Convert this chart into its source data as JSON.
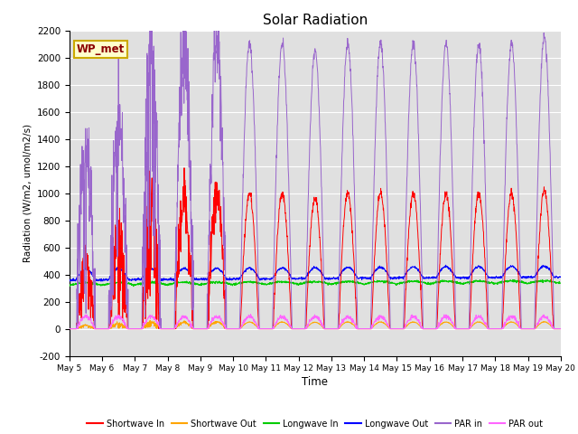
{
  "title": "Solar Radiation",
  "xlabel": "Time",
  "ylabel": "Radiation (W/m2, umol/m2/s)",
  "ylim": [
    -200,
    2200
  ],
  "yticks": [
    -200,
    0,
    200,
    400,
    600,
    800,
    1000,
    1200,
    1400,
    1600,
    1800,
    2000,
    2200
  ],
  "background_color": "#e0e0e0",
  "site_label": "WP_met",
  "site_label_color": "#8B0000",
  "site_label_bg": "#ffffcc",
  "colors": {
    "shortwave_in": "#ff0000",
    "shortwave_out": "#ffa500",
    "longwave_in": "#00cc00",
    "longwave_out": "#0000ff",
    "par_in": "#9966cc",
    "par_out": "#ff66ff"
  },
  "legend_labels": [
    "Shortwave In",
    "Shortwave Out",
    "Longwave In",
    "Longwave Out",
    "PAR in",
    "PAR out"
  ],
  "n_days": 15,
  "start_day": 5,
  "points_per_day": 144
}
